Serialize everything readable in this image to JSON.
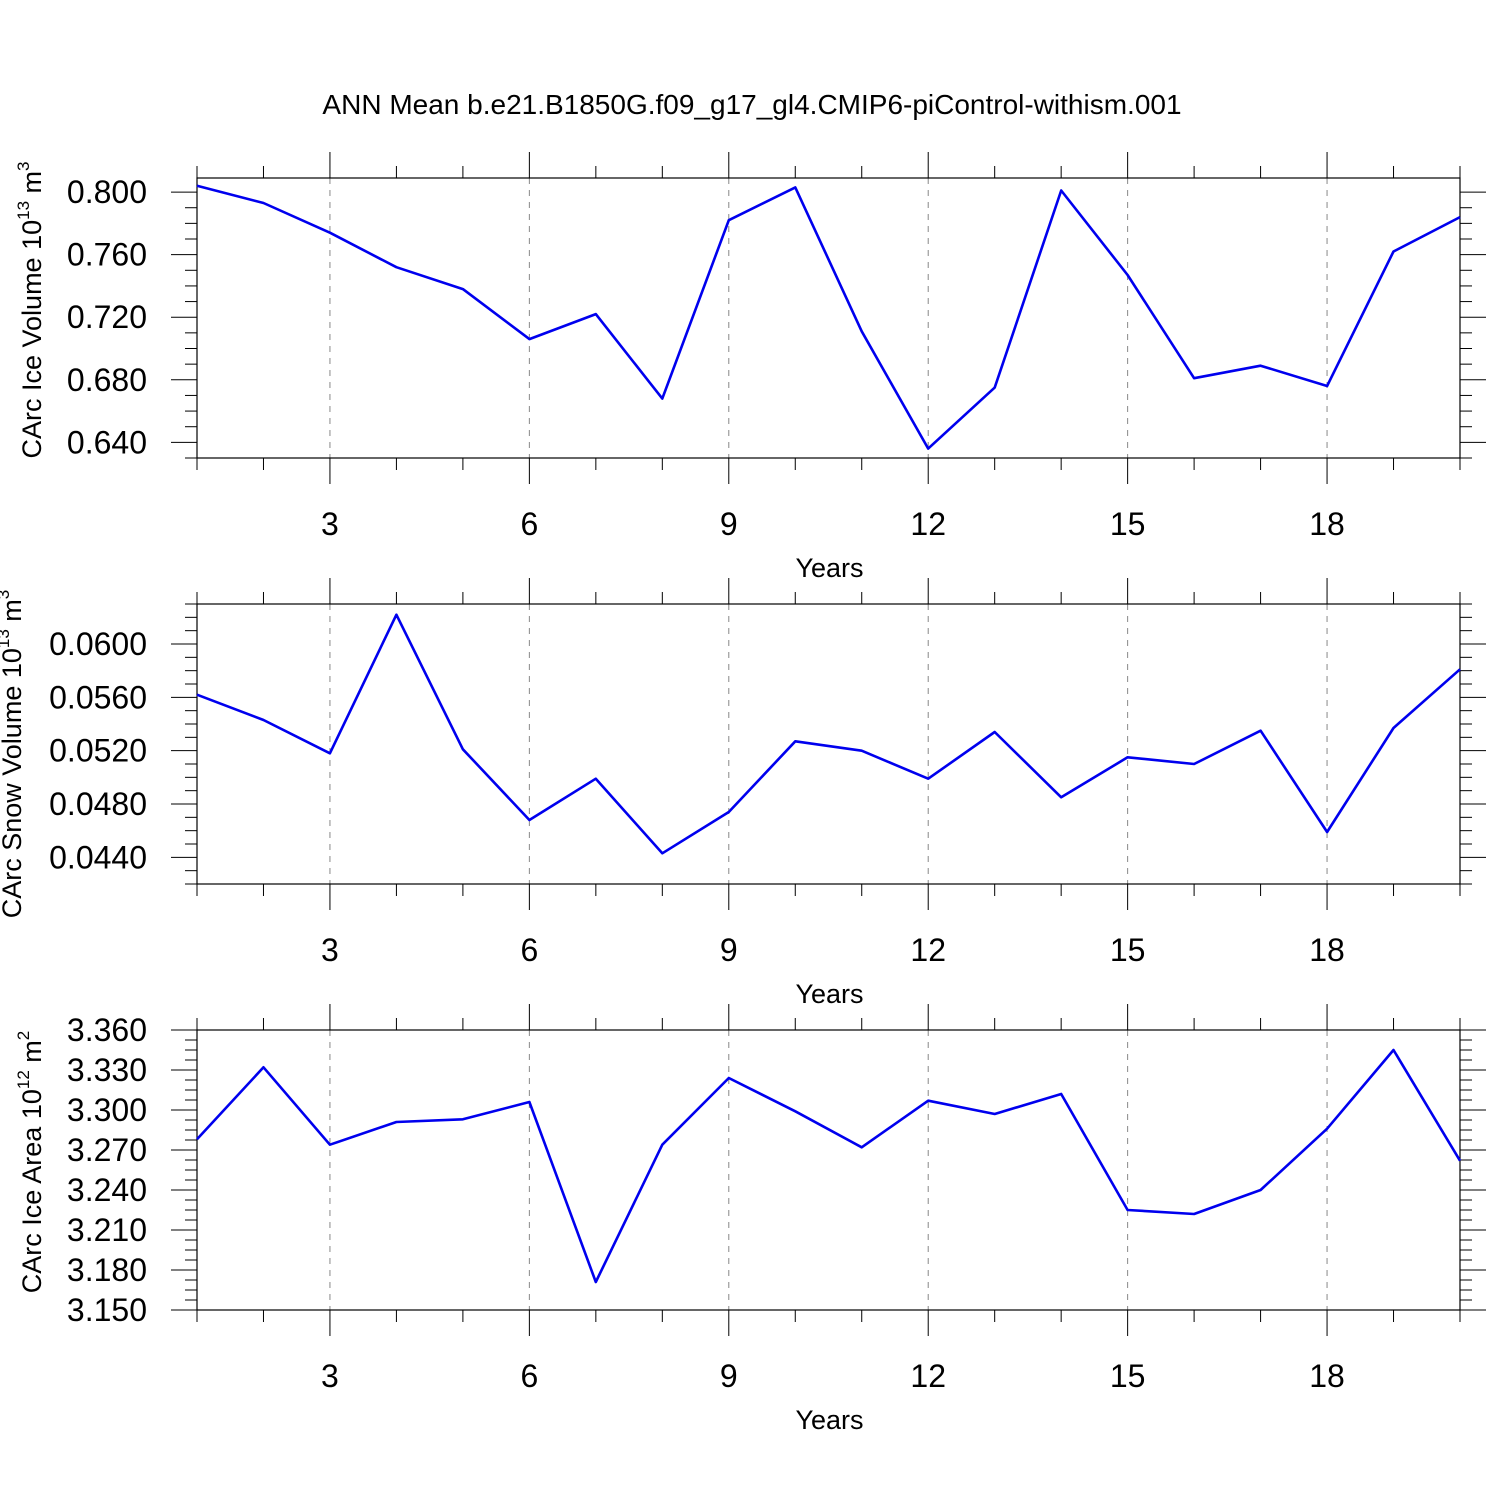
{
  "title": "ANN Mean b.e21.B1850G.f09_g17_gl4.CMIP6-piControl-withism.001",
  "line_color": "#0000ee",
  "chart_data": [
    {
      "type": "line",
      "xlabel": "Years",
      "ylabel": {
        "base": "CArc Ice Volume 10",
        "sup1": "13",
        "unit": " m",
        "sup2": "3"
      },
      "x": [
        1,
        2,
        3,
        4,
        5,
        6,
        7,
        8,
        9,
        10,
        11,
        12,
        13,
        14,
        15,
        16,
        17,
        18,
        19,
        20
      ],
      "xlim": [
        1,
        20
      ],
      "xticks": [
        3,
        6,
        9,
        12,
        15,
        18
      ],
      "ylim": [
        0.63,
        0.809
      ],
      "yticks": [
        "0.640",
        "0.680",
        "0.720",
        "0.760",
        "0.800"
      ],
      "grid": "vertical dashed",
      "values": [
        0.804,
        0.793,
        0.774,
        0.752,
        0.738,
        0.706,
        0.722,
        0.668,
        0.782,
        0.803,
        0.711,
        0.636,
        0.675,
        0.801,
        0.747,
        0.681,
        0.689,
        0.676,
        0.762,
        0.784
      ]
    },
    {
      "type": "line",
      "xlabel": "Years",
      "ylabel": {
        "base": "CArc Snow Volume 10",
        "sup1": "13",
        "unit": " m",
        "sup2": "3"
      },
      "x": [
        1,
        2,
        3,
        4,
        5,
        6,
        7,
        8,
        9,
        10,
        11,
        12,
        13,
        14,
        15,
        16,
        17,
        18,
        19,
        20
      ],
      "xlim": [
        1,
        20
      ],
      "xticks": [
        3,
        6,
        9,
        12,
        15,
        18
      ],
      "ylim": [
        0.042,
        0.063
      ],
      "yticks": [
        "0.0440",
        "0.0480",
        "0.0520",
        "0.0560",
        "0.0600"
      ],
      "grid": "vertical dashed",
      "values": [
        0.0562,
        0.0543,
        0.0518,
        0.0622,
        0.0521,
        0.0468,
        0.0499,
        0.0443,
        0.0474,
        0.0527,
        0.052,
        0.0499,
        0.0534,
        0.0485,
        0.0515,
        0.051,
        0.0535,
        0.0459,
        0.0537,
        0.0581
      ]
    },
    {
      "type": "line",
      "xlabel": "Years",
      "ylabel": {
        "base": "CArc Ice Area 10",
        "sup1": "12",
        "unit": " m",
        "sup2": "2"
      },
      "x": [
        1,
        2,
        3,
        4,
        5,
        6,
        7,
        8,
        9,
        10,
        11,
        12,
        13,
        14,
        15,
        16,
        17,
        18,
        19,
        20
      ],
      "xlim": [
        1,
        20
      ],
      "xticks": [
        3,
        6,
        9,
        12,
        15,
        18
      ],
      "ylim": [
        3.15,
        3.36
      ],
      "yticks": [
        "3.150",
        "3.180",
        "3.210",
        "3.240",
        "3.270",
        "3.300",
        "3.330",
        "3.360"
      ],
      "grid": "vertical dashed",
      "values": [
        3.278,
        3.332,
        3.274,
        3.291,
        3.293,
        3.306,
        3.171,
        3.274,
        3.324,
        3.299,
        3.272,
        3.307,
        3.297,
        3.312,
        3.225,
        3.222,
        3.24,
        3.286,
        3.345,
        3.262
      ]
    }
  ]
}
